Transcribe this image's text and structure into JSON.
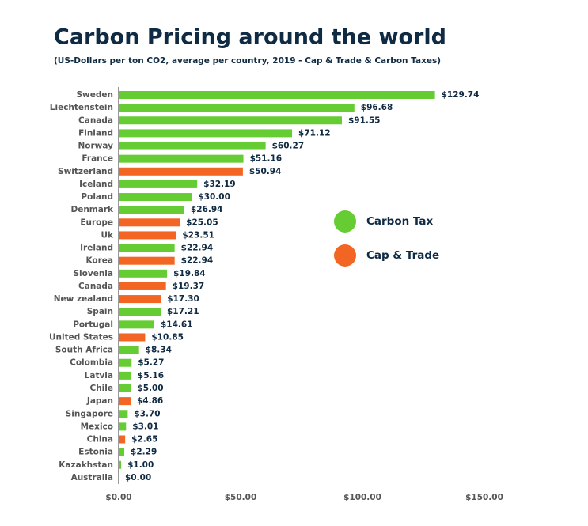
{
  "chart_data": {
    "type": "hbar",
    "title": "Carbon Pricing around the world",
    "subtitle": "(US-Dollars per ton CO2, average per country, 2019 - Cap & Trade & Carbon Taxes)",
    "categories": [
      "Sweden",
      "Liechtenstein",
      "Canada",
      "Finland",
      "Norway",
      "France",
      "Switzerland",
      "Iceland",
      "Poland",
      "Denmark",
      "Europe",
      "Uk",
      "Ireland",
      "Korea",
      "Slovenia",
      "Canada",
      "New zealand",
      "Spain",
      "Portugal",
      "United States",
      "South Africa",
      "Colombia",
      "Latvia",
      "Chile",
      "Japan",
      "Singapore",
      "Mexico",
      "China",
      "Estonia",
      "Kazakhstan",
      "Australia"
    ],
    "values": [
      129.74,
      96.68,
      91.55,
      71.12,
      60.27,
      51.16,
      50.94,
      32.19,
      30.0,
      26.94,
      25.05,
      23.51,
      22.94,
      22.94,
      19.84,
      19.37,
      17.3,
      17.21,
      14.61,
      10.85,
      8.34,
      5.27,
      5.16,
      5.0,
      4.86,
      3.7,
      3.01,
      2.65,
      2.29,
      1.0,
      0.0
    ],
    "value_labels": [
      "$129.74",
      "$96.68",
      "$91.55",
      "$71.12",
      "$60.27",
      "$51.16",
      "$50.94",
      "$32.19",
      "$30.00",
      "$26.94",
      "$25.05",
      "$23.51",
      "$22.94",
      "$22.94",
      "$19.84",
      "$19.37",
      "$17.30",
      "$17.21",
      "$14.61",
      "$10.85",
      "$8.34",
      "$5.27",
      "$5.16",
      "$5.00",
      "$4.86",
      "$3.70",
      "$3.01",
      "$2.65",
      "$2.29",
      "$1.00",
      "$0.00"
    ],
    "colors": [
      "#66cc33",
      "#66cc33",
      "#66cc33",
      "#66cc33",
      "#66cc33",
      "#66cc33",
      "#f26522",
      "#66cc33",
      "#66cc33",
      "#66cc33",
      "#f26522",
      "#f26522",
      "#66cc33",
      "#f26522",
      "#66cc33",
      "#f26522",
      "#f26522",
      "#66cc33",
      "#66cc33",
      "#f26522",
      "#66cc33",
      "#66cc33",
      "#66cc33",
      "#66cc33",
      "#f26522",
      "#66cc33",
      "#66cc33",
      "#f26522",
      "#66cc33",
      "#66cc33",
      "#66cc33"
    ],
    "xlim": [
      0,
      150
    ],
    "xticks": [
      {
        "value": 0,
        "label": "$0.00"
      },
      {
        "value": 50,
        "label": "$50.00"
      },
      {
        "value": 100,
        "label": "$100.00"
      },
      {
        "value": 150,
        "label": "$150.00"
      }
    ],
    "legend": [
      {
        "name": "Carbon Tax",
        "color": "#66cc33"
      },
      {
        "name": "Cap & Trade",
        "color": "#f26522"
      }
    ]
  }
}
